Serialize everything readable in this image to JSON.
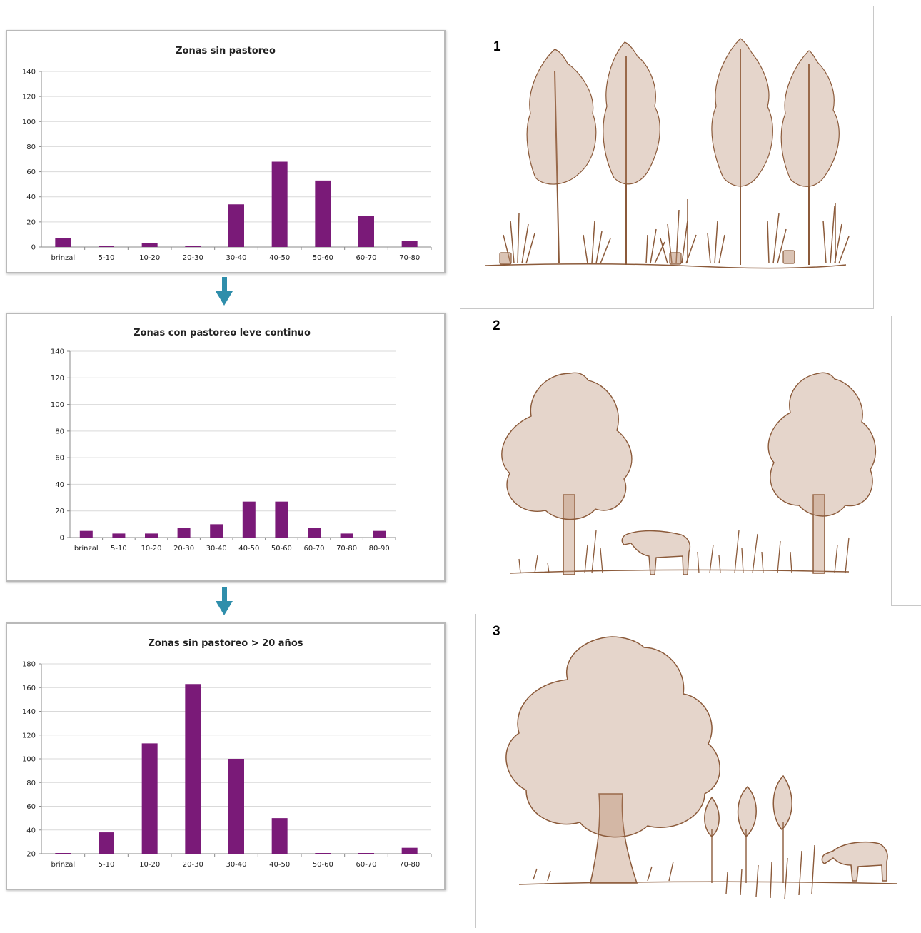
{
  "chart_data": [
    {
      "type": "bar",
      "title": "Zonas sin pastoreo",
      "categories": [
        "brinzal",
        "5-10",
        "10-20",
        "20-30",
        "30-40",
        "40-50",
        "50-60",
        "60-70",
        "70-80"
      ],
      "values": [
        7,
        0,
        3,
        0,
        34,
        68,
        53,
        25,
        5
      ],
      "ylim": [
        0,
        140
      ],
      "yticks": [
        0,
        20,
        40,
        60,
        80,
        100,
        120,
        140
      ],
      "grid": true,
      "color": "#7a1a78"
    },
    {
      "type": "bar",
      "title": "Zonas con pastoreo leve continuo",
      "categories": [
        "brinzal",
        "5-10",
        "10-20",
        "20-30",
        "30-40",
        "40-50",
        "50-60",
        "60-70",
        "70-80",
        "80-90"
      ],
      "values": [
        5,
        3,
        3,
        7,
        10,
        27,
        27,
        7,
        3,
        5
      ],
      "ylim": [
        0,
        140
      ],
      "yticks": [
        0,
        20,
        40,
        60,
        80,
        100,
        120,
        140
      ],
      "grid": true,
      "color": "#7a1a78"
    },
    {
      "type": "bar",
      "title": "Zonas sin pastoreo > 20 años",
      "categories": [
        "brinzal",
        "5-10",
        "10-20",
        "20-30",
        "30-40",
        "40-50",
        "50-60",
        "60-70",
        "70-80"
      ],
      "values": [
        20,
        38,
        113,
        163,
        100,
        50,
        20,
        20,
        25
      ],
      "ylim": [
        20,
        180
      ],
      "yticks": [
        20,
        40,
        60,
        80,
        100,
        120,
        140,
        160,
        180
      ],
      "grid": true,
      "color": "#7a1a78"
    }
  ],
  "panels": [
    {
      "number": "1"
    },
    {
      "number": "2"
    },
    {
      "number": "3"
    }
  ],
  "colors": {
    "bar": "#7a1a78",
    "arrow": "#2f8eab",
    "ink": "#8b5a3a"
  }
}
